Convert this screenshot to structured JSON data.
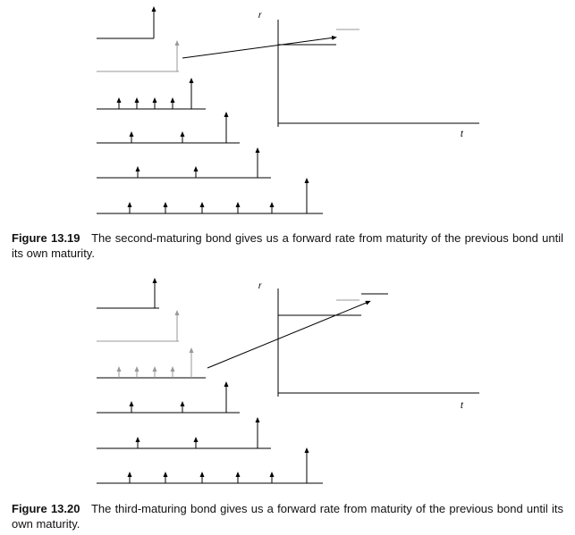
{
  "figures": [
    {
      "r_label": "r",
      "t_label": "t",
      "label": "Figure 13.19",
      "caption": "The second-maturing bond gives us a forward rate from maturity of the previous bond until its own maturity."
    },
    {
      "r_label": "r",
      "t_label": "t",
      "label": "Figure 13.20",
      "caption": "The third-maturing bond gives us a forward rate from maturity of the previous bond until its own maturity."
    }
  ]
}
